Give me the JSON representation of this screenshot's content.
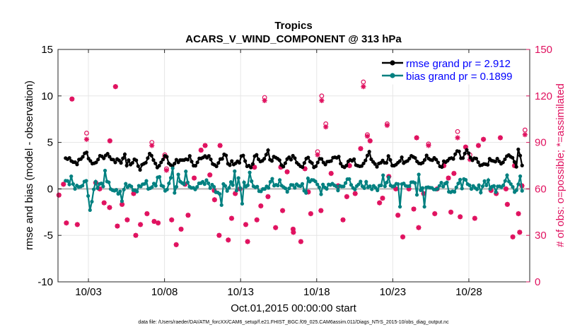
{
  "chart_data": {
    "type": "line",
    "title": "Tropics",
    "subtitle": "ACARS_V_WIND_COMPONENT @ 313 hPa",
    "xlabel": "Oct.01,2015 00:00:00 start",
    "ylabel": "rmse and bias (model - observation)",
    "ylabel_right": "# of obs: o=possible; *=assimilated",
    "footnote": "data file: /Users/raeder/DAI/ATM_forcXX/CAM6_setup/f.e21.FHIST_BGC.f09_025.CAM6assim.011/Diags_NTrS_2015-10/obs_diag_output.nc",
    "xlim": [
      1.0,
      32.0
    ],
    "ylim": [
      -10,
      15
    ],
    "ylim_right": [
      0,
      150
    ],
    "x_ticks": [
      3,
      8,
      13,
      18,
      23,
      28
    ],
    "x_tick_labels": [
      "10/03",
      "10/08",
      "10/13",
      "10/18",
      "10/23",
      "10/28"
    ],
    "y_ticks": [
      -10,
      -5,
      0,
      5,
      10,
      15
    ],
    "y_tick_labels": [
      "-10",
      "-5",
      "0",
      "5",
      "10",
      "15"
    ],
    "y_ticks_right": [
      0,
      30,
      60,
      90,
      120,
      150
    ],
    "y_tick_labels_right": [
      "0",
      "30",
      "60",
      "90",
      "120",
      "150"
    ],
    "grid": true,
    "legend_position": "top-right",
    "series": [
      {
        "name": "rmse grand pr = 2.912",
        "color": "#000000",
        "values": [
          3.31,
          3.2,
          3.33,
          3.0,
          2.88,
          2.87,
          2.63,
          3.16,
          3.21,
          3.45,
          3.83,
          3.93,
          3.26,
          3.01,
          2.72,
          2.76,
          2.85,
          3.16,
          3.57,
          3.5,
          3.29,
          3.6,
          3.78,
          3.46,
          3.18,
          3.14,
          2.85,
          3.21,
          3.07,
          2.79,
          3.29,
          3.72,
          2.52,
          3.09,
          2.61,
          2.8,
          3.19,
          3.07,
          2.45,
          2.04,
          2.6,
          2.71,
          2.82,
          3.31,
          3.79,
          3.58,
          3.1,
          2.74,
          2.3,
          2.49,
          2.85,
          3.16,
          3.56,
          3.45,
          2.75,
          2.57,
          2.45,
          2.72,
          3.14,
          2.86,
          3.1,
          3.1,
          3.1,
          3.2,
          3.14,
          3.55,
          2.94,
          2.5,
          2.49,
          2.85,
          3.28,
          3.28,
          3.38,
          3.54,
          3.35,
          3.55,
          3.18,
          2.68,
          2.58,
          2.42,
          2.79,
          3.21,
          3.23,
          3.72,
          3.6,
          2.71,
          2.55,
          3.0,
          2.62,
          2.75,
          2.97,
          2.81,
          3.53,
          3.59,
          3.0,
          2.43,
          2.5,
          2.3,
          2.68,
          3.52,
          3.66,
          3.18,
          2.94,
          3.02,
          3.24,
          3.68,
          4.16,
          3.14,
          3.01,
          3.47,
          3.37,
          3.25,
          3.09,
          2.56,
          2.39,
          2.76,
          3.21,
          3.4,
          3.14,
          3.57,
          3.31,
          2.82,
          2.63,
          2.43,
          2.34,
          2.79,
          3.26,
          3.38,
          2.93,
          2.78,
          2.32,
          2.44,
          2.84,
          3.24,
          3.22,
          2.84,
          2.62,
          2.93,
          2.95,
          3.0,
          3.36,
          3.4,
          3.34,
          3.47,
          2.72,
          2.42,
          2.33,
          2.51,
          2.96,
          3.12,
          3.02,
          3.2,
          2.56,
          2.49,
          2.43,
          2.46,
          2.74,
          3.06,
          3.59,
          4.0,
          3.19,
          2.91,
          2.68,
          2.37,
          2.73,
          2.81,
          3.05,
          2.81,
          2.8,
          3.54,
          3.12,
          2.51,
          2.5,
          2.61,
          2.82,
          2.99,
          3.4,
          2.77,
          2.92,
          3.01,
          3.26,
          3.56,
          3.44,
          3.33,
          2.95,
          2.75,
          2.72,
          2.82,
          3.11,
          3.6,
          3.27,
          3.13,
          3.09,
          3.34,
          3.15,
          2.84,
          2.42,
          2.35,
          2.98,
          2.88,
          3.03,
          3.26,
          3.32,
          3.22,
          3.74,
          4.07,
          4.03,
          3.3,
          3.31,
          3.81,
          4.19,
          3.84,
          3.35,
          3.08,
          3.3,
          3.26,
          2.87,
          2.53,
          2.57,
          2.68,
          2.65,
          2.59,
          3.24,
          3.05,
          3.0,
          2.93,
          3.25,
          2.96,
          2.71,
          2.85,
          3.19,
          3.52,
          3.64,
          3.46,
          3.35,
          2.91,
          2.37,
          4.25,
          3.58,
          2.52
        ]
      },
      {
        "name": "bias grand pr = 0.1899",
        "color": "#008080",
        "values": [
          0.88,
          0.86,
          0.48,
          1.35,
          0.53,
          0.0,
          0.36,
          0.2,
          0.24,
          0.35,
          0.79,
          0.87,
          -0.76,
          -2.28,
          -1.37,
          -0.05,
          0.77,
          0.08,
          0.53,
          0.59,
          0.27,
          1.97,
          0.8,
          0.71,
          -0.02,
          -0.14,
          -0.2,
          -0.1,
          -0.53,
          -0.27,
          -1.32,
          -0.08,
          0.55,
          0.18,
          0.38,
          0.26,
          -0.14,
          -0.15,
          -0.29,
          0.34,
          0.26,
          0.5,
          0.54,
          0.86,
          0.0,
          0.07,
          0.19,
          0.57,
          0.34,
          1.24,
          1.3,
          0.36,
          0.27,
          -0.21,
          -0.07,
          0.59,
          1.19,
          2.22,
          -0.43,
          0.23,
          1.55,
          0.79,
          0.64,
          0.51,
          1.88,
          0.7,
          0.23,
          0.11,
          0.12,
          -0.06,
          0.21,
          0.6,
          0.62,
          0.76,
          0.51,
          0.94,
          0.61,
          0.09,
          0.45,
          0.22,
          -0.36,
          -0.39,
          -0.54,
          -1.74,
          0.53,
          0.32,
          -0.22,
          0.11,
          0.74,
          0.41,
          1.9,
          -0.18,
          1.17,
          0.08,
          -1.6,
          0.7,
          0.24,
          0.39,
          1.77,
          0.83,
          0.28,
          0.17,
          0.24,
          -0.25,
          -0.27,
          -0.01,
          -0.01,
          0.27,
          0.11,
          0.76,
          1.09,
          0.35,
          0.44,
          0.37,
          0.95,
          0.35,
          0.19,
          0.06,
          -0.32,
          0.06,
          0.43,
          0.41,
          0.11,
          0.5,
          0.33,
          0.29,
          0.54,
          -0.2,
          -0.44,
          1.13,
          0.78,
          0.96,
          0.94,
          0.8,
          0.48,
          0.17,
          -0.58,
          0.47,
          0.16,
          0.0,
          0.48,
          0.43,
          0.56,
          0.39,
          0.29,
          -0.17,
          0.33,
          0.26,
          0.27,
          0.63,
          1.05,
          1.06,
          0.43,
          0.11,
          -0.06,
          0.31,
          0.49,
          0.79,
          0.28,
          0.08,
          0.76,
          0.17,
          0.29,
          -0.04,
          0.33,
          0.12,
          -0.16,
          0.35,
          0.38,
          1.47,
          0.28,
          0.7,
          1.24,
          0.36,
          0.25,
          0.31,
          0.55,
          0.52,
          -1.92,
          0.52,
          0.58,
          0.33,
          0.28,
          0.3,
          0.72,
          0.73,
          0.64,
          -0.64,
          1.55,
          -0.14,
          0.1,
          -1.92,
          0.16,
          0.18,
          0.13,
          0.11,
          -0.06,
          -0.07,
          0.0,
          0.33,
          0.67,
          0.25,
          0.57,
          0.71,
          -0.31,
          -0.36,
          -0.26,
          -0.32,
          0.17,
          0.58,
          0.99,
          0.04,
          1.06,
          0.97,
          0.51,
          0.39,
          -0.01,
          0.32,
          0.1,
          -0.05,
          0.39,
          -0.39,
          0.28,
          0.84,
          0.38,
          0.94,
          -0.01,
          0.24,
          0.32,
          -0.34,
          0.27,
          0.28,
          0.18,
          0.38,
          0.86,
          1.47,
          0.79,
          0.52,
          0.21,
          -0.34,
          -0.14,
          0.5,
          1.36,
          -0.21
        ]
      }
    ],
    "obs_series": [
      {
        "name": "possible",
        "marker": "o",
        "color": "#e0115f",
        "x": [
          1.06,
          1.36,
          1.55,
          1.92,
          2.27,
          2.88,
          3.48,
          3.74,
          4.03,
          4.39,
          4.41,
          4.78,
          4.9,
          5.21,
          5.55,
          5.97,
          6.11,
          6.42,
          6.85,
          7.17,
          7.32,
          7.58,
          8.02,
          8.13,
          8.47,
          8.77,
          9.09,
          9.35,
          9.55,
          9.95,
          10.4,
          10.67,
          10.98,
          11.27,
          11.29,
          11.59,
          11.65,
          12.19,
          12.41,
          12.65,
          12.96,
          13.34,
          13.46,
          13.91,
          14.07,
          14.33,
          14.58,
          14.8,
          15.3,
          15.64,
          15.76,
          16.06,
          16.45,
          16.47,
          16.96,
          17.23,
          17.45,
          17.61,
          18.06,
          18.28,
          18.33,
          18.6,
          18.95,
          19.41,
          19.73,
          19.98,
          20.16,
          20.53,
          20.89,
          21.07,
          21.33,
          21.51,
          22.13,
          22.33,
          22.63,
          22.74,
          23.2,
          23.34,
          23.66,
          24.06,
          24.38,
          24.57,
          24.7,
          25.03,
          25.35,
          25.76,
          25.92,
          26.36,
          26.66,
          26.82,
          27.02,
          27.26,
          27.43,
          27.79,
          28.07,
          28.39,
          28.63,
          28.96,
          29.46,
          29.8,
          30.07,
          30.44,
          30.53,
          30.89,
          31.0,
          31.26,
          31.34,
          31.49,
          31.69
        ],
        "y": [
          56,
          63,
          38,
          118,
          37,
          96,
          64,
          60,
          51,
          48,
          91,
          126,
          36,
          50,
          40,
          57,
          30,
          37,
          44,
          90,
          39,
          38,
          82,
          73,
          40,
          24,
          34,
          63,
          43,
          67,
          85,
          88,
          69,
          59,
          53,
          30,
          88,
          27,
          41,
          57,
          60,
          37,
          26,
          74,
          40,
          49,
          119,
          55,
          35,
          74,
          46,
          71,
          34,
          32,
          26,
          73,
          58,
          44,
          84,
          46,
          120,
          102,
          70,
          62,
          40,
          55,
          75,
          57,
          86,
          129,
          95,
          91,
          51,
          54,
          102,
          68,
          60,
          43,
          29,
          60,
          47,
          93,
          35,
          57,
          89,
          44,
          60,
          75,
          67,
          45,
          70,
          97,
          42,
          87,
          82,
          41,
          88,
          92,
          59,
          57,
          93,
          60,
          50,
          29,
          75,
          44,
          32,
          62,
          98
        ]
      },
      {
        "name": "assimilated",
        "marker": "*",
        "color": "#e0115f",
        "x": [
          1.06,
          1.36,
          1.55,
          1.92,
          2.27,
          2.88,
          3.48,
          3.74,
          4.03,
          4.39,
          4.41,
          4.78,
          4.9,
          5.21,
          5.55,
          5.97,
          6.11,
          6.42,
          6.85,
          7.17,
          7.32,
          7.58,
          8.02,
          8.13,
          8.47,
          8.77,
          9.09,
          9.35,
          9.55,
          9.95,
          10.4,
          10.67,
          10.98,
          11.27,
          11.29,
          11.59,
          11.65,
          12.19,
          12.41,
          12.65,
          12.96,
          13.34,
          13.46,
          13.91,
          14.07,
          14.33,
          14.58,
          14.8,
          15.3,
          15.64,
          15.76,
          16.06,
          16.45,
          16.47,
          16.96,
          17.23,
          17.45,
          17.61,
          18.06,
          18.28,
          18.33,
          18.6,
          18.95,
          19.41,
          19.73,
          19.98,
          20.16,
          20.53,
          20.89,
          21.07,
          21.33,
          21.51,
          22.13,
          22.33,
          22.63,
          22.74,
          23.2,
          23.34,
          23.66,
          24.06,
          24.38,
          24.57,
          24.7,
          25.03,
          25.35,
          25.76,
          25.92,
          26.36,
          26.66,
          26.82,
          27.02,
          27.26,
          27.43,
          27.79,
          28.07,
          28.39,
          28.63,
          28.96,
          29.46,
          29.8,
          30.07,
          30.44,
          30.53,
          30.89,
          31.0,
          31.26,
          31.34,
          31.49,
          31.69
        ],
        "y": [
          56,
          63,
          38,
          118,
          37,
          92,
          64,
          60,
          51,
          48,
          91,
          126,
          36,
          50,
          40,
          57,
          30,
          37,
          44,
          88,
          39,
          38,
          81,
          72,
          40,
          24,
          34,
          63,
          43,
          67,
          85,
          88,
          69,
          59,
          53,
          30,
          88,
          27,
          41,
          57,
          60,
          37,
          26,
          74,
          40,
          49,
          117,
          55,
          35,
          74,
          46,
          71,
          34,
          32,
          26,
          73,
          58,
          44,
          82,
          46,
          117,
          100,
          70,
          62,
          40,
          55,
          75,
          57,
          86,
          126,
          94,
          91,
          51,
          54,
          101,
          68,
          60,
          43,
          29,
          60,
          47,
          93,
          35,
          57,
          88,
          44,
          60,
          75,
          67,
          45,
          70,
          93,
          42,
          87,
          79,
          41,
          88,
          92,
          59,
          57,
          93,
          60,
          50,
          29,
          75,
          44,
          32,
          62,
          95
        ]
      }
    ]
  }
}
